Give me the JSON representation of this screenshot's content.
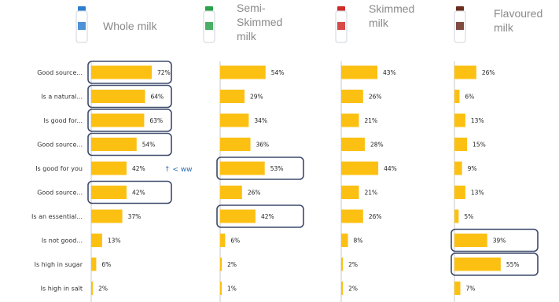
{
  "chart_data": {
    "type": "bar",
    "orientation": "horizontal",
    "categories": [
      "Good source...",
      "Is a natural...",
      "Is good for...",
      "Good source...",
      "Is good for you",
      "Good source...",
      "Is an essential...",
      "Is not good...",
      "Is high in sugar",
      "Is high in salt"
    ],
    "series": [
      {
        "name": "Whole milk",
        "values": [
          72,
          64,
          63,
          54,
          42,
          42,
          37,
          13,
          6,
          2
        ],
        "highlighted": [
          0,
          1,
          2,
          3,
          5
        ]
      },
      {
        "name": "Semi-Skimmed milk",
        "values": [
          54,
          29,
          34,
          36,
          53,
          26,
          42,
          6,
          2,
          1
        ],
        "highlighted": [
          4,
          6
        ]
      },
      {
        "name": "Skimmed milk",
        "values": [
          43,
          26,
          21,
          28,
          44,
          21,
          26,
          8,
          2,
          2
        ],
        "highlighted": []
      },
      {
        "name": "Flavoured milk",
        "values": [
          26,
          6,
          13,
          15,
          9,
          13,
          5,
          39,
          55,
          7
        ],
        "highlighted": [
          7,
          8
        ]
      }
    ],
    "value_suffix": "%",
    "bar_color": "#fcc012",
    "highlight_border_color": "#3d4a6b",
    "annotation": {
      "text": "↑ < ww",
      "color": "#2e6bb5",
      "row": 4
    }
  },
  "bottle_colors": [
    "#2f7fd0",
    "#2aa24a",
    "#d02a2a",
    "#6b2d1e"
  ]
}
